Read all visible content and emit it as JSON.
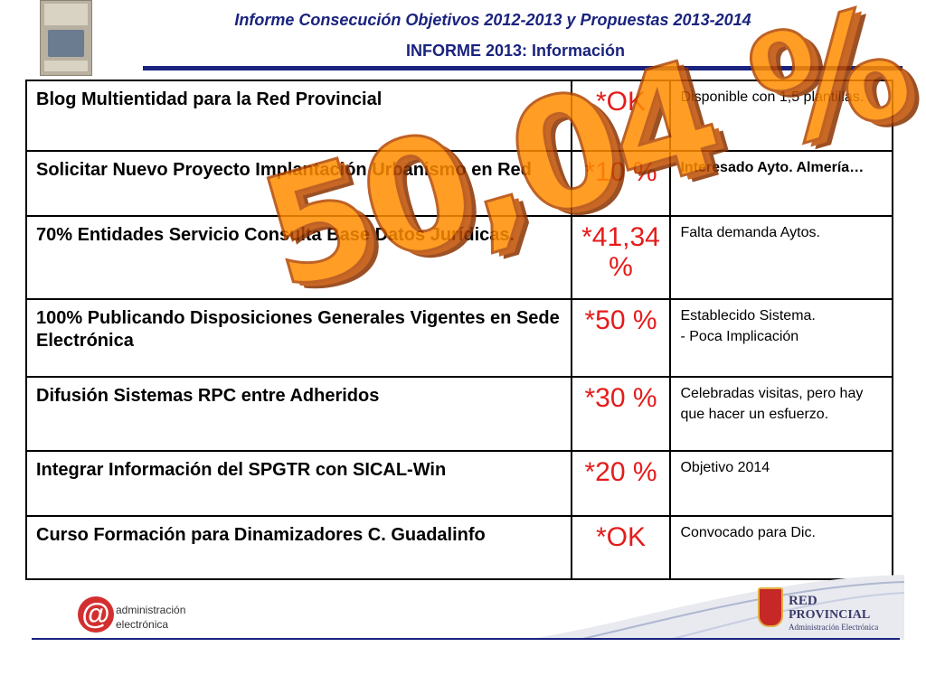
{
  "header": {
    "title": "Informe Consecución Objetivos 2012-2013 y Propuestas 2013-2014",
    "subtitle": "INFORME 2013: Información"
  },
  "rows": [
    {
      "task": "Blog Multientidad para la Red Provincial",
      "status": "*OK",
      "note": "Disponible con 1,5 plantillas."
    },
    {
      "task": "Solicitar Nuevo Proyecto Implantación Urbanismo en Red",
      "status": "*10 %",
      "note": "Interesado Ayto. Almería…"
    },
    {
      "task": "70% Entidades Servicio Consulta Base Datos Jurídicas.",
      "status": "*41,34 %",
      "note": "Falta demanda Aytos."
    },
    {
      "task": "100% Publicando Disposiciones Generales Vigentes en Sede Electrónica",
      "status": "*50 %",
      "note": "Establecido Sistema.",
      "note2": "- Poca Implicación"
    },
    {
      "task": "Difusión Sistemas RPC entre Adheridos",
      "status": "*30 %",
      "note": "Celebradas visitas, pero hay que hacer un esfuerzo."
    },
    {
      "task": "Integrar Información del SPGTR con SICAL-Win",
      "status": "*20 %",
      "note": "Objetivo 2014"
    },
    {
      "task": "Curso Formación para Dinamizadores C. Guadalinfo",
      "status": "*OK",
      "note": "Convocado para Dic."
    }
  ],
  "overlay": {
    "total": "50,04 %"
  },
  "footer": {
    "left_logo_symbol": "@",
    "left_logo_line1": "administración",
    "left_logo_line2": "electrónica",
    "right_logo_line1": "RED",
    "right_logo_line2": "PROVINCIAL",
    "right_logo_line3": "Administración Electrónica"
  },
  "colors": {
    "title": "#1a237e",
    "status": "#e51b1b",
    "overlay": "#ff8c00"
  }
}
